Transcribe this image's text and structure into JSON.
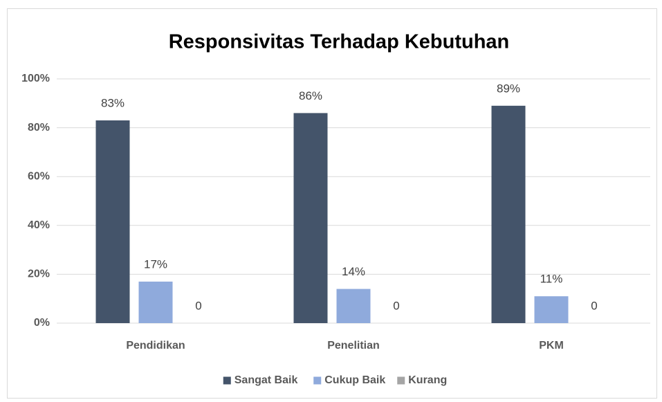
{
  "chart_data": {
    "type": "bar",
    "title": "Responsivitas Terhadap Kebutuhan",
    "categories": [
      "Pendidikan",
      "Penelitian",
      "PKM"
    ],
    "series": [
      {
        "name": "Sangat Baik",
        "color": "#44546a",
        "values": [
          83,
          86,
          89
        ],
        "value_labels": [
          "83%",
          "86%",
          "89%"
        ]
      },
      {
        "name": "Cukup Baik",
        "color": "#8faadc",
        "values": [
          17,
          14,
          11
        ],
        "value_labels": [
          "17%",
          "14%",
          "11%"
        ]
      },
      {
        "name": "Kurang",
        "color": "#a5a5a5",
        "values": [
          0,
          0,
          0
        ]
      }
    ],
    "ylim": [
      0,
      100
    ],
    "yticks": [
      {
        "value": 0,
        "label": "0%"
      },
      {
        "value": 20,
        "label": "20%"
      },
      {
        "value": 40,
        "label": "40%"
      },
      {
        "value": 60,
        "label": "60%"
      },
      {
        "value": 80,
        "label": "80%"
      },
      {
        "value": 100,
        "label": "100%"
      }
    ],
    "grid": true,
    "legend": "bottom"
  }
}
